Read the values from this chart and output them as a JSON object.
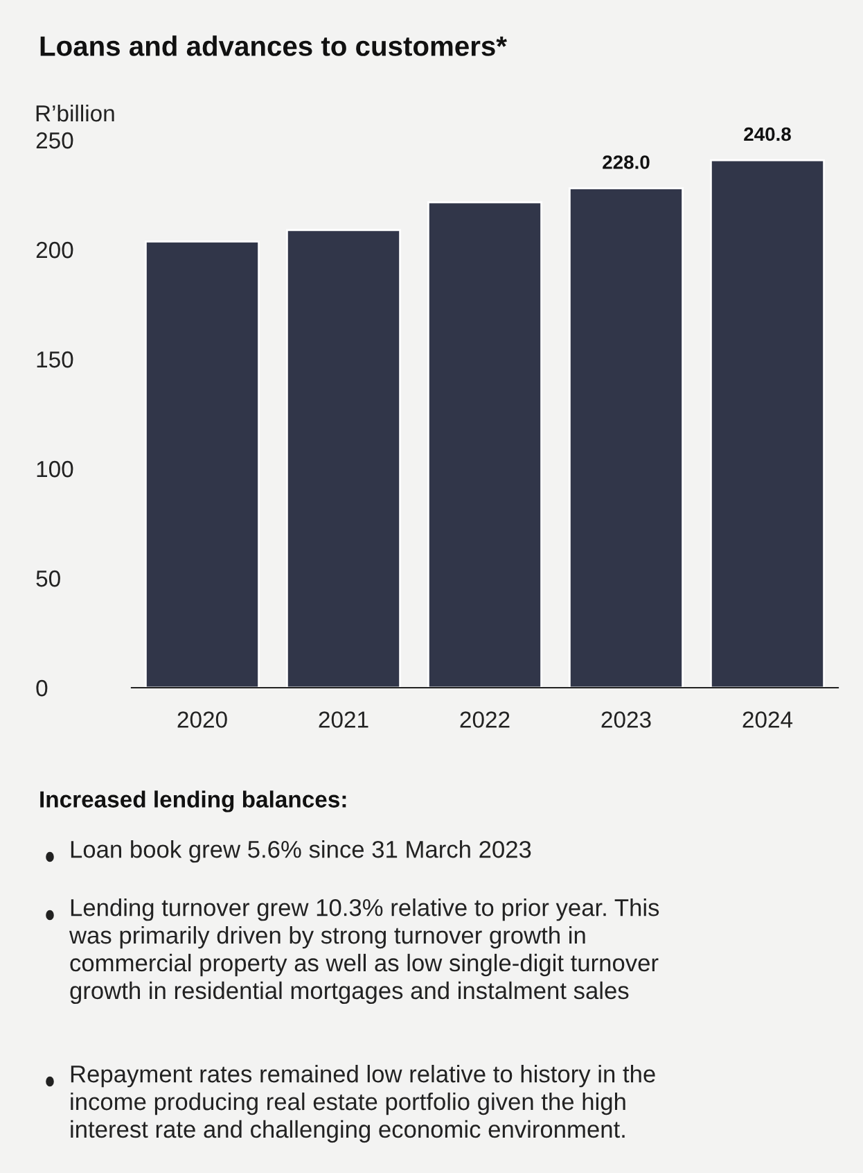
{
  "chart_data": {
    "type": "bar",
    "title": "Loans and advances to customers*",
    "ylabel": "R’billion",
    "categories": [
      "2020",
      "2021",
      "2022",
      "2023",
      "2024"
    ],
    "values": [
      203.7,
      208.9,
      221.6,
      228.0,
      240.8
    ],
    "value_labels": [
      null,
      null,
      null,
      "228.0",
      "240.8"
    ],
    "color": "#313649",
    "ylim": [
      0,
      250
    ],
    "yticks": [
      0,
      50,
      100,
      150,
      200,
      250
    ],
    "grid": false,
    "legend": false,
    "annotations": [
      "Increased lending balances:",
      "Loan book grew 5.6% since 31 March 2023",
      "Lending turnover grew 10.3% relative to prior year. This\nwas primarily driven by strong turnover growth in\ncommercial property as well as low single-digit turnover\ngrowth in residential mortgages and instalment sales",
      "Repayment rates remained low relative to history in the\nincome producing real estate portfolio given the high\ninterest rate and challenging economic environment."
    ]
  }
}
